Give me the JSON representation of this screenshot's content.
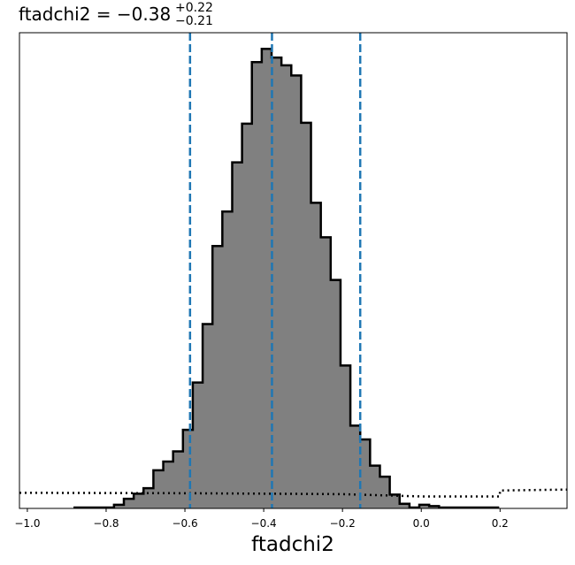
{
  "chart_data": {
    "type": "histogram",
    "title": {
      "param": "ftadchi2",
      "eq": " = ",
      "median": "−0.38",
      "plus": "+0.22",
      "minus": "−0.21"
    },
    "xlabel": "ftadchi2",
    "ylabel": "",
    "xlim": [
      -1.02,
      0.37
    ],
    "ylim": [
      0,
      1.035
    ],
    "grid": false,
    "legend": "none",
    "x_ticks": [
      {
        "value": -1.0,
        "label": "−1.0"
      },
      {
        "value": -0.8,
        "label": "−0.8"
      },
      {
        "value": -0.6,
        "label": "−0.6"
      },
      {
        "value": -0.4,
        "label": "−0.4"
      },
      {
        "value": -0.2,
        "label": "−0.2"
      },
      {
        "value": 0.0,
        "label": "0.0"
      },
      {
        "value": 0.2,
        "label": "0.2"
      }
    ],
    "histogram": {
      "fill_color": "#808080",
      "edge_color": "#000000",
      "bin_edges": [
        -0.88,
        -0.855,
        -0.83,
        -0.805,
        -0.78,
        -0.755,
        -0.73,
        -0.705,
        -0.68,
        -0.655,
        -0.63,
        -0.605,
        -0.58,
        -0.555,
        -0.53,
        -0.505,
        -0.48,
        -0.455,
        -0.43,
        -0.405,
        -0.38,
        -0.355,
        -0.33,
        -0.305,
        -0.28,
        -0.255,
        -0.23,
        -0.205,
        -0.18,
        -0.155,
        -0.13,
        -0.105,
        -0.08,
        -0.055,
        -0.03,
        -0.005,
        0.02,
        0.045,
        0.07,
        0.095,
        0.12,
        0.145,
        0.17,
        0.195
      ],
      "counts": [
        0.002,
        0.002,
        0.002,
        0.002,
        0.008,
        0.021,
        0.032,
        0.044,
        0.083,
        0.102,
        0.124,
        0.171,
        0.274,
        0.401,
        0.571,
        0.646,
        0.753,
        0.837,
        0.971,
        1.0,
        0.981,
        0.964,
        0.942,
        0.839,
        0.665,
        0.59,
        0.497,
        0.311,
        0.18,
        0.15,
        0.093,
        0.069,
        0.03,
        0.01,
        0.002,
        0.008,
        0.005,
        0.002,
        0.002,
        0.002,
        0.002,
        0.002,
        0.002
      ]
    },
    "quantile_lines": {
      "color": "#1f77b4",
      "style": "dashed",
      "values": [
        -0.587,
        -0.379,
        -0.155
      ]
    },
    "prior_curve": {
      "color": "#000000",
      "style": "dotted",
      "x": [
        -1.02,
        -0.6,
        -0.38,
        -0.2,
        0.0,
        0.199,
        0.2,
        0.37
      ],
      "y": [
        0.034,
        0.033,
        0.032,
        0.031,
        0.026,
        0.026,
        0.039,
        0.041
      ]
    }
  }
}
